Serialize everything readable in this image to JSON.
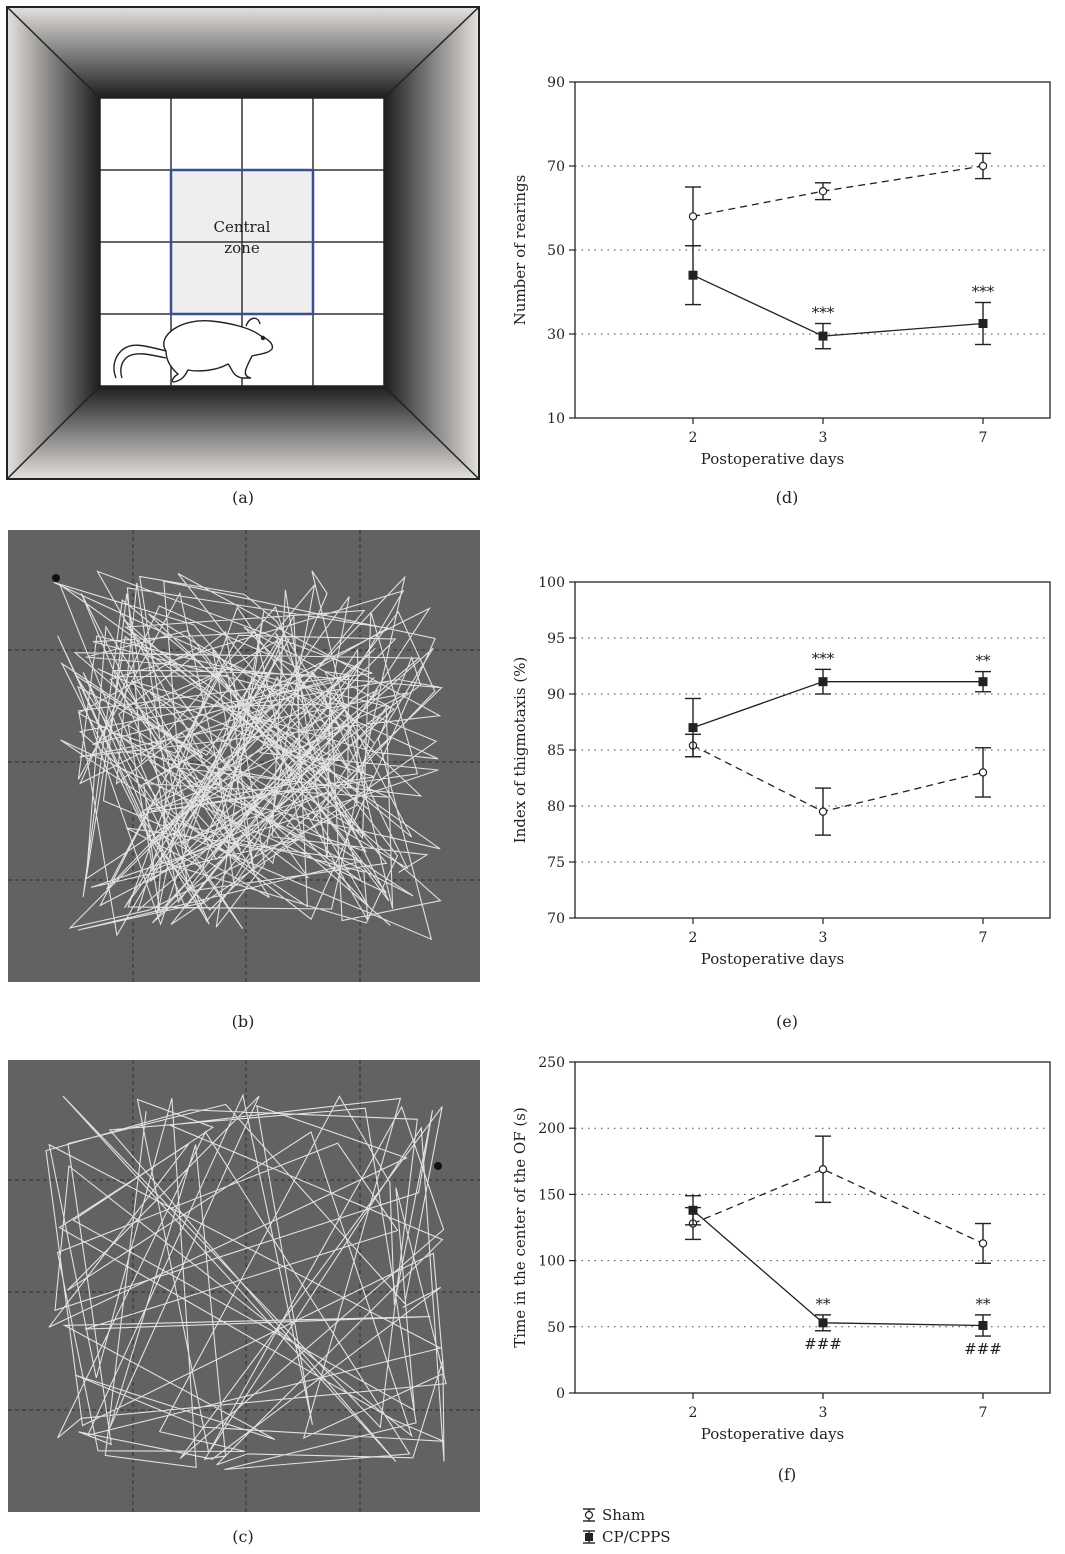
{
  "arena": {
    "central_label_line1": "Central",
    "central_label_line2": "zone"
  },
  "captions": {
    "a": "(a)",
    "b": "(b)",
    "c": "(c)",
    "d": "(d)",
    "e": "(e)",
    "f": "(f)"
  },
  "legend": {
    "sham": "Sham",
    "cp": "CP/CPPS"
  },
  "chart_data": [
    {
      "id": "d",
      "type": "line",
      "xlabel": "Postoperative days",
      "ylabel": "Number of rearings",
      "categories": [
        "2",
        "3",
        "7"
      ],
      "ylim": [
        10,
        90
      ],
      "yticks": [
        10,
        30,
        50,
        70,
        90
      ],
      "grid": "dotted horizontal",
      "series": [
        {
          "name": "Sham",
          "values": [
            58,
            64,
            70
          ],
          "err": [
            7,
            2,
            3
          ],
          "style": "dashed-open-circle"
        },
        {
          "name": "CP/CPPS",
          "values": [
            44,
            29.5,
            32.5
          ],
          "err": [
            7,
            3,
            5
          ],
          "style": "solid-filled-square"
        }
      ],
      "annotations": [
        {
          "x": "3",
          "series": "CP/CPPS",
          "text": "***",
          "pos": "above"
        },
        {
          "x": "7",
          "series": "CP/CPPS",
          "text": "***",
          "pos": "above"
        }
      ]
    },
    {
      "id": "e",
      "type": "line",
      "xlabel": "Postoperative days",
      "ylabel": "Index of thigmotaxis (%)",
      "categories": [
        "2",
        "3",
        "7"
      ],
      "ylim": [
        70,
        100
      ],
      "yticks": [
        70,
        75,
        80,
        85,
        90,
        95,
        100
      ],
      "grid": "dotted horizontal",
      "series": [
        {
          "name": "Sham",
          "values": [
            85.4,
            79.5,
            83
          ],
          "err": [
            1,
            2.1,
            2.2
          ],
          "style": "dashed-open-circle"
        },
        {
          "name": "CP/CPPS",
          "values": [
            87,
            91.1,
            91.1
          ],
          "err": [
            2.6,
            1.1,
            0.9
          ],
          "style": "solid-filled-square"
        }
      ],
      "annotations": [
        {
          "x": "3",
          "series": "CP/CPPS",
          "text": "***",
          "pos": "above"
        },
        {
          "x": "7",
          "series": "CP/CPPS",
          "text": "**",
          "pos": "above"
        }
      ]
    },
    {
      "id": "f",
      "type": "line",
      "xlabel": "Postoperative days",
      "ylabel": "Time in the center of the OF (s)",
      "categories": [
        "2",
        "3",
        "7"
      ],
      "ylim": [
        0,
        250
      ],
      "yticks": [
        0,
        50,
        100,
        150,
        200,
        250
      ],
      "grid": "dotted horizontal",
      "series": [
        {
          "name": "Sham",
          "values": [
            128,
            169,
            113
          ],
          "err": [
            12,
            25,
            15
          ],
          "style": "dashed-open-circle"
        },
        {
          "name": "CP/CPPS",
          "values": [
            138,
            53,
            51
          ],
          "err": [
            11,
            6,
            8
          ],
          "style": "solid-filled-square"
        }
      ],
      "annotations": [
        {
          "x": "3",
          "series": "CP/CPPS",
          "text": "**",
          "pos": "above"
        },
        {
          "x": "7",
          "series": "CP/CPPS",
          "text": "**",
          "pos": "above"
        },
        {
          "x": "3",
          "series": "CP/CPPS",
          "text": "###",
          "pos": "below"
        },
        {
          "x": "7",
          "series": "CP/CPPS",
          "text": "###",
          "pos": "below"
        }
      ]
    }
  ]
}
